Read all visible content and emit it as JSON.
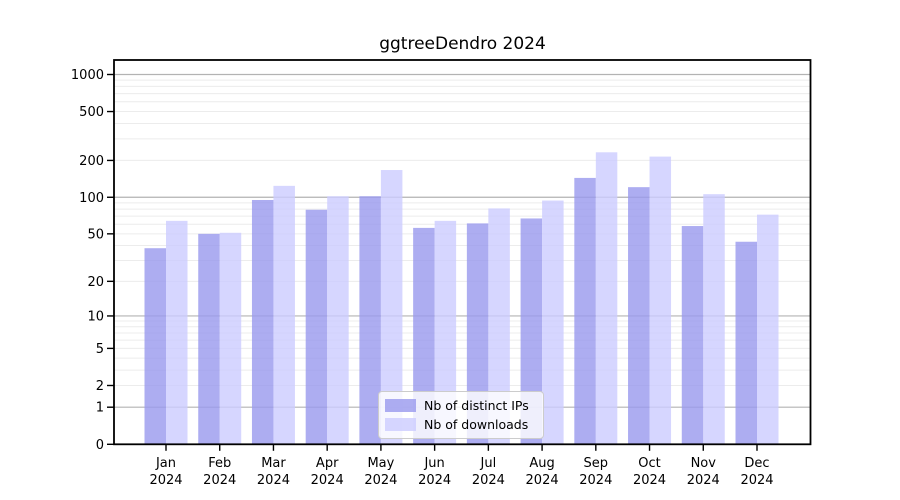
{
  "chart_data": {
    "type": "bar",
    "title": "ggtreeDendro 2024",
    "categories": [
      "Jan 2024",
      "Feb 2024",
      "Mar 2024",
      "Apr 2024",
      "May 2024",
      "Jun 2024",
      "Jul 2024",
      "Aug 2024",
      "Sep 2024",
      "Oct 2024",
      "Nov 2024",
      "Dec 2024"
    ],
    "month_line1": [
      "Jan",
      "Feb",
      "Mar",
      "Apr",
      "May",
      "Jun",
      "Jul",
      "Aug",
      "Sep",
      "Oct",
      "Nov",
      "Dec"
    ],
    "month_line2": [
      "2024",
      "2024",
      "2024",
      "2024",
      "2024",
      "2024",
      "2024",
      "2024",
      "2024",
      "2024",
      "2024",
      "2024"
    ],
    "series": [
      {
        "name": "Nb of distinct IPs",
        "color": "#9999ee",
        "opacity": 0.8,
        "values": [
          38,
          50,
          95,
          79,
          102,
          56,
          61,
          67,
          144,
          121,
          58,
          43
        ]
      },
      {
        "name": "Nb of downloads",
        "color": "#ccccff",
        "opacity": 0.8,
        "values": [
          64,
          51,
          124,
          102,
          167,
          64,
          81,
          94,
          233,
          215,
          106,
          72
        ]
      }
    ],
    "y_axis": {
      "scale": "log10(value+1)",
      "tick_values": [
        0,
        1,
        2,
        5,
        10,
        20,
        50,
        100,
        200,
        500,
        1000
      ],
      "tick_labels": [
        "0",
        "1",
        "2",
        "5",
        "10",
        "20",
        "50",
        "100",
        "200",
        "500",
        "1000"
      ],
      "range_top_value": 1300
    },
    "grid": {
      "minor_color": "#ececec",
      "major_color": "#b3b3b3",
      "major_values": [
        1,
        10,
        100,
        1000
      ]
    },
    "legend_position": "lower center",
    "axis_color": "#000000",
    "background_color": "#ffffff"
  }
}
